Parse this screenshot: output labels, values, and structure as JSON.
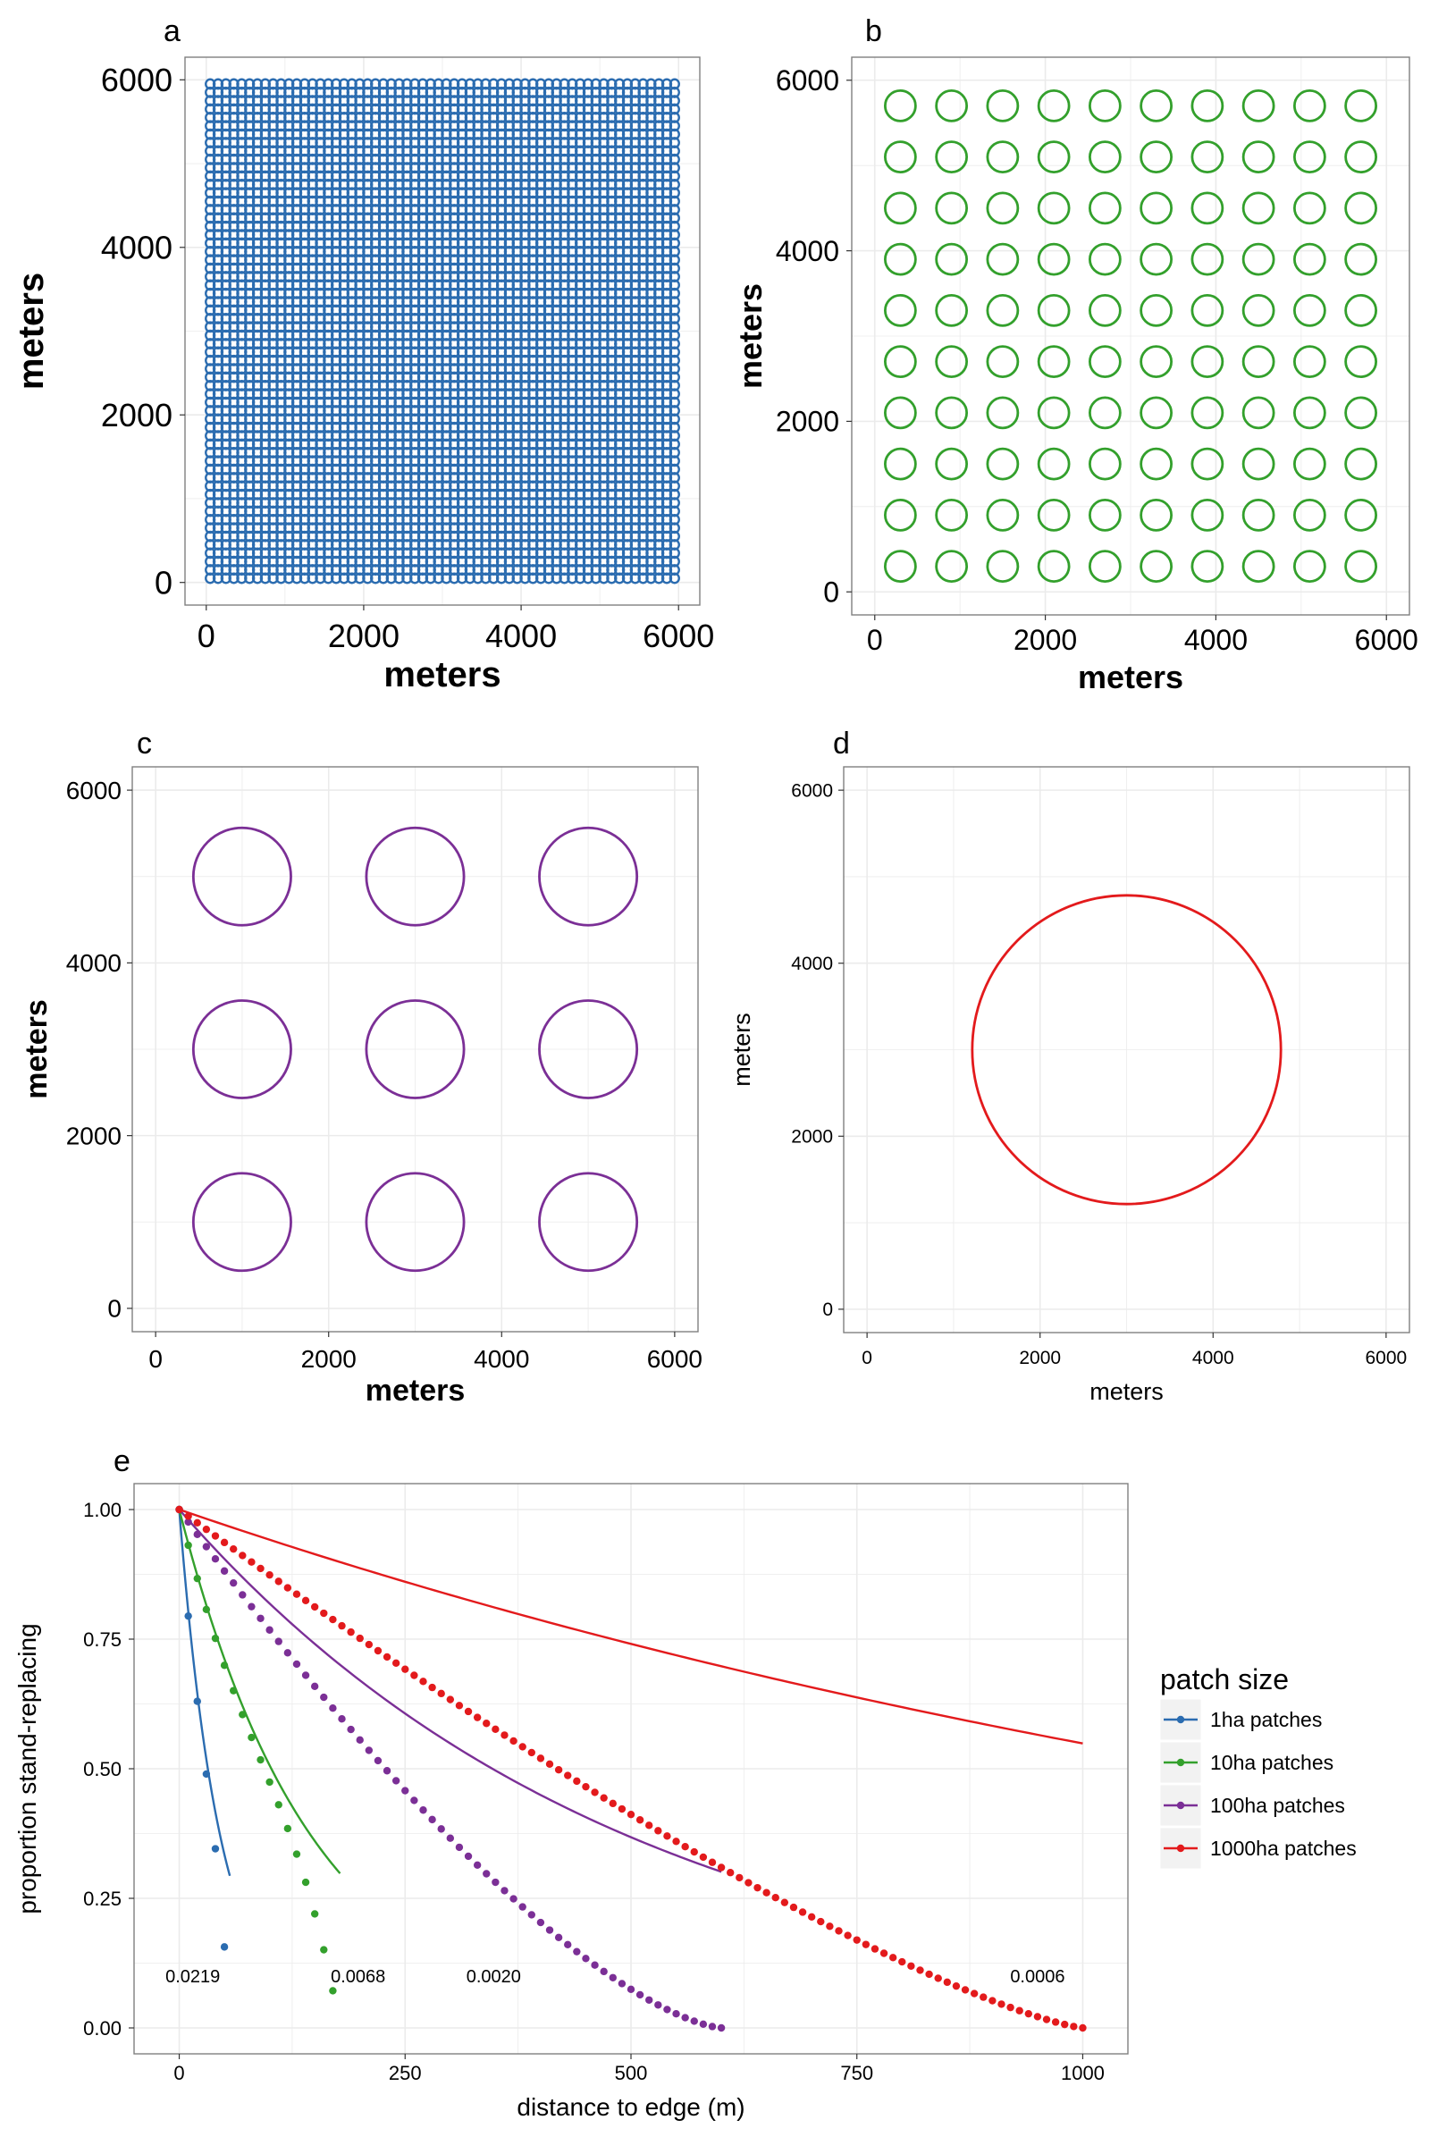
{
  "colors": {
    "blue": "#2b6cb0",
    "green": "#33a02c",
    "purple": "#7b2f96",
    "red": "#e31a1c",
    "grid": "#ebebeb",
    "frame": "#7f7f7f"
  },
  "chart_data": [
    {
      "tag": "a",
      "type": "scatter",
      "xlabel": "meters",
      "ylabel": "meters",
      "xlim": [
        0,
        6000
      ],
      "ylim": [
        0,
        6000
      ],
      "xticks": [
        "0",
        "2000",
        "4000",
        "6000"
      ],
      "yticks": [
        "0",
        "2000",
        "4000",
        "6000"
      ],
      "series": [
        {
          "color": "blue",
          "grid_count": 60,
          "spacing": 100,
          "radius": 56
        }
      ]
    },
    {
      "tag": "b",
      "type": "scatter",
      "xlabel": "meters",
      "ylabel": "meters",
      "xlim": [
        0,
        6000
      ],
      "ylim": [
        0,
        6000
      ],
      "xticks": [
        "0",
        "2000",
        "4000",
        "6000"
      ],
      "yticks": [
        "0",
        "2000",
        "4000",
        "6000"
      ],
      "series": [
        {
          "color": "green",
          "grid_count": 10,
          "spacing": 600,
          "radius": 178
        }
      ]
    },
    {
      "tag": "c",
      "type": "scatter",
      "xlabel": "meters",
      "ylabel": "meters",
      "xlim": [
        0,
        6000
      ],
      "ylim": [
        0,
        6000
      ],
      "xticks": [
        "0",
        "2000",
        "4000",
        "6000"
      ],
      "yticks": [
        "0",
        "2000",
        "4000",
        "6000"
      ],
      "series": [
        {
          "color": "purple",
          "grid_count": 3,
          "spacing": 2000,
          "radius": 564
        }
      ]
    },
    {
      "tag": "d",
      "type": "scatter",
      "xlabel": "meters",
      "ylabel": "meters",
      "xlim": [
        0,
        6000
      ],
      "ylim": [
        0,
        6000
      ],
      "xticks": [
        "0",
        "2000",
        "4000",
        "6000"
      ],
      "yticks": [
        "0",
        "2000",
        "4000",
        "6000"
      ],
      "series": [
        {
          "color": "red",
          "grid_count": 1,
          "spacing": 6000,
          "radius": 1784
        }
      ]
    },
    {
      "tag": "e",
      "type": "line",
      "xlabel": "distance to edge (m)",
      "ylabel": "proportion stand-replacing",
      "xlim": [
        0,
        1000
      ],
      "ylim": [
        0,
        1
      ],
      "xticks": [
        "0",
        "250",
        "500",
        "750",
        "1000"
      ],
      "yticks": [
        "0.00",
        "0.25",
        "0.50",
        "0.75",
        "1.00"
      ],
      "legend_title": "patch size",
      "legend_position": "right",
      "series": [
        {
          "name": "1ha patches",
          "color": "blue",
          "rate": 0.0219,
          "max_distance": 56,
          "point_step": 10,
          "point_exponent": 0.96,
          "label": "0.0219",
          "label_x": 15,
          "label_y": 0.1
        },
        {
          "name": "10ha patches",
          "color": "green",
          "rate": 0.0068,
          "max_distance": 178,
          "point_step": 10,
          "point_exponent": 0.98,
          "label": "0.0068",
          "label_x": 198,
          "label_y": 0.1
        },
        {
          "name": "100ha patches",
          "color": "purple",
          "rate": 0.002,
          "max_distance": 600,
          "point_step": 10,
          "point_exponent": 1.45,
          "label": "0.0020",
          "label_x": 348,
          "label_y": 0.1
        },
        {
          "name": "1000ha patches",
          "color": "red",
          "rate": 0.0006,
          "max_distance": 1000,
          "point_step": 10,
          "point_exponent": 1.28,
          "label": "0.0006",
          "label_x": 950,
          "label_y": 0.1
        }
      ]
    }
  ]
}
